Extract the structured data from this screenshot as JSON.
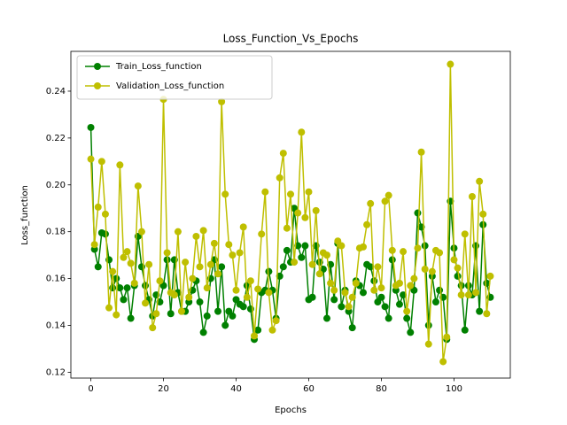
{
  "chart_data": {
    "type": "line",
    "title": "Loss_Function_Vs_Epochs",
    "x_label": "Epochs",
    "y_label": "Loss_function",
    "x": [
      0,
      1,
      2,
      3,
      4,
      5,
      6,
      7,
      8,
      9,
      10,
      11,
      12,
      13,
      14,
      15,
      16,
      17,
      18,
      19,
      20,
      21,
      22,
      23,
      24,
      25,
      26,
      27,
      28,
      29,
      30,
      31,
      32,
      33,
      34,
      35,
      36,
      37,
      38,
      39,
      40,
      41,
      42,
      43,
      44,
      45,
      46,
      47,
      48,
      49,
      50,
      51,
      52,
      53,
      54,
      55,
      56,
      57,
      58,
      59,
      60,
      61,
      62,
      63,
      64,
      65,
      66,
      67,
      68,
      69,
      70,
      71,
      72,
      73,
      74,
      75,
      76,
      77,
      78,
      79,
      80,
      81,
      82,
      83,
      84,
      85,
      86,
      87,
      88,
      89,
      90,
      91,
      92,
      93,
      94,
      95,
      96,
      97,
      98,
      99,
      100,
      101,
      102,
      103,
      104,
      105,
      106,
      107,
      108,
      109,
      110
    ],
    "series": [
      {
        "name": "Train_Loss_function",
        "color": "#008000",
        "values": [
          0.2245,
          0.1725,
          0.165,
          0.1795,
          0.179,
          0.168,
          0.156,
          0.16,
          0.156,
          0.151,
          0.156,
          0.143,
          0.157,
          0.178,
          0.165,
          0.157,
          0.151,
          0.144,
          0.153,
          0.15,
          0.157,
          0.168,
          0.145,
          0.168,
          0.154,
          0.146,
          0.146,
          0.15,
          0.155,
          0.159,
          0.15,
          0.137,
          0.144,
          0.16,
          0.168,
          0.146,
          0.165,
          0.14,
          0.146,
          0.144,
          0.151,
          0.149,
          0.148,
          0.157,
          0.147,
          0.134,
          0.138,
          0.154,
          0.155,
          0.163,
          0.155,
          0.143,
          0.161,
          0.165,
          0.172,
          0.167,
          0.19,
          0.174,
          0.169,
          0.174,
          0.151,
          0.152,
          0.174,
          0.167,
          0.164,
          0.143,
          0.166,
          0.151,
          0.175,
          0.148,
          0.155,
          0.146,
          0.139,
          0.159,
          0.157,
          0.154,
          0.166,
          0.165,
          0.159,
          0.15,
          0.152,
          0.148,
          0.143,
          0.168,
          0.155,
          0.149,
          0.153,
          0.143,
          0.137,
          0.155,
          0.188,
          0.182,
          0.174,
          0.14,
          0.161,
          0.15,
          0.155,
          0.152,
          0.134,
          0.193,
          0.173,
          0.161,
          0.157,
          0.138,
          0.157,
          0.153,
          0.174,
          0.146,
          0.183,
          0.158,
          0.152
        ]
      },
      {
        "name": "Validation_Loss_function",
        "color": "#bfbf00",
        "values": [
          0.211,
          0.1745,
          0.1905,
          0.21,
          0.1875,
          0.1475,
          0.163,
          0.1445,
          0.2085,
          0.169,
          0.1715,
          0.1665,
          0.158,
          0.1995,
          0.18,
          0.1495,
          0.166,
          0.139,
          0.145,
          0.159,
          0.2365,
          0.171,
          0.154,
          0.153,
          0.18,
          0.146,
          0.167,
          0.152,
          0.16,
          0.178,
          0.165,
          0.1805,
          0.156,
          0.166,
          0.175,
          0.162,
          0.2355,
          0.196,
          0.1745,
          0.17,
          0.155,
          0.171,
          0.182,
          0.152,
          0.159,
          0.1355,
          0.1555,
          0.179,
          0.197,
          0.154,
          0.138,
          0.142,
          0.203,
          0.2135,
          0.1815,
          0.196,
          0.167,
          0.188,
          0.2225,
          0.186,
          0.197,
          0.166,
          0.189,
          0.162,
          0.171,
          0.17,
          0.158,
          0.155,
          0.176,
          0.174,
          0.154,
          0.148,
          0.152,
          0.158,
          0.173,
          0.1735,
          0.183,
          0.192,
          0.155,
          0.165,
          0.156,
          0.193,
          0.1955,
          0.172,
          0.157,
          0.158,
          0.1715,
          0.146,
          0.157,
          0.16,
          0.173,
          0.214,
          0.164,
          0.132,
          0.163,
          0.172,
          0.171,
          0.1245,
          0.135,
          0.2515,
          0.168,
          0.1645,
          0.153,
          0.179,
          0.153,
          0.195,
          0.154,
          0.2015,
          0.1875,
          0.145,
          0.161
        ]
      }
    ],
    "xlim": [
      -5.5,
      115.5
    ],
    "xticks": [
      0,
      20,
      40,
      60,
      80,
      100
    ],
    "ylim": [
      0.1175,
      0.257
    ],
    "yticks": [
      0.12,
      0.14,
      0.16,
      0.18,
      {
        "value": 0.2,
        "label": "0.20"
      },
      0.22,
      0.24
    ],
    "legend": "upper left",
    "markers": true
  }
}
